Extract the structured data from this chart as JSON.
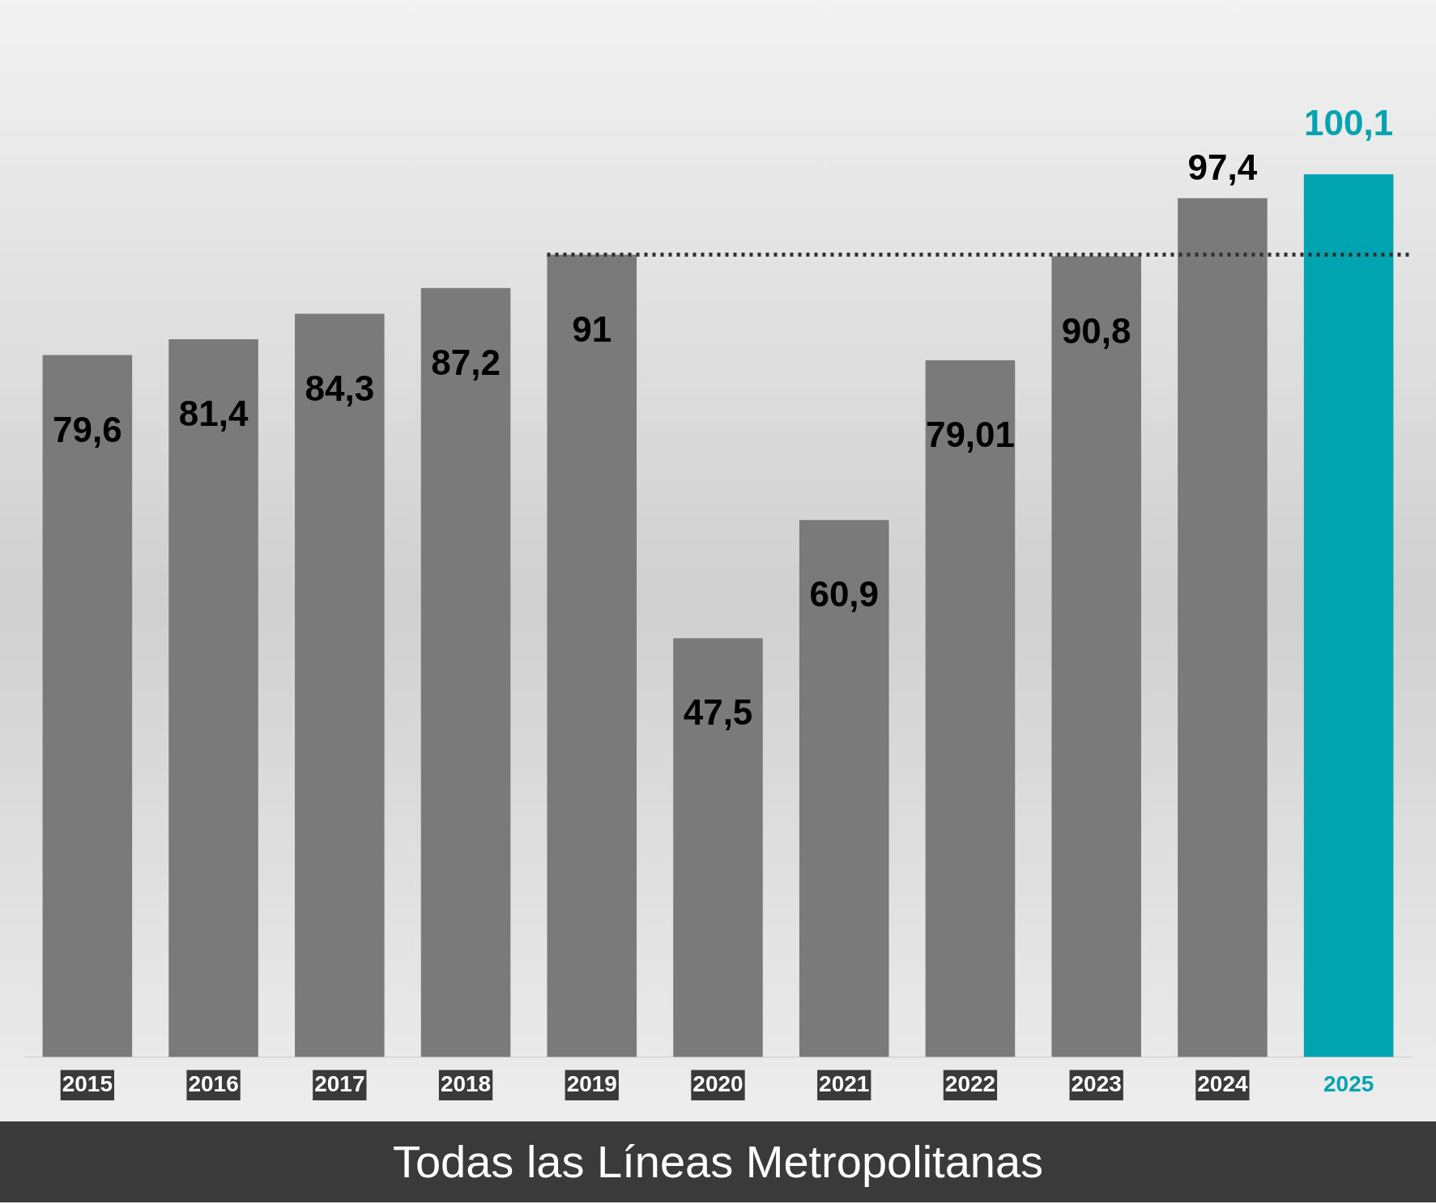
{
  "chart_data": {
    "type": "bar",
    "title": "Todas las Líneas Metropolitanas",
    "categories": [
      "2015",
      "2016",
      "2017",
      "2018",
      "2019",
      "2020",
      "2021",
      "2022",
      "2023",
      "2024",
      "2025"
    ],
    "values": [
      79.6,
      81.4,
      84.3,
      87.2,
      91,
      47.5,
      60.9,
      79.01,
      90.8,
      97.4,
      100.1
    ],
    "value_labels": [
      "79,6",
      "81,4",
      "84,3",
      "87,2",
      "91",
      "47,5",
      "60,9",
      "79,01",
      "90,8",
      "97,4",
      "100,1"
    ],
    "colors": [
      "#7a7a7a",
      "#7a7a7a",
      "#7a7a7a",
      "#7a7a7a",
      "#7a7a7a",
      "#7a7a7a",
      "#7a7a7a",
      "#7a7a7a",
      "#7a7a7a",
      "#7a7a7a",
      "#00a3b0"
    ],
    "ref_lines": [
      {
        "axis": "y",
        "value": 91,
        "color": "#333333",
        "line_style": "dotted"
      }
    ],
    "grid": false,
    "legend": false
  }
}
